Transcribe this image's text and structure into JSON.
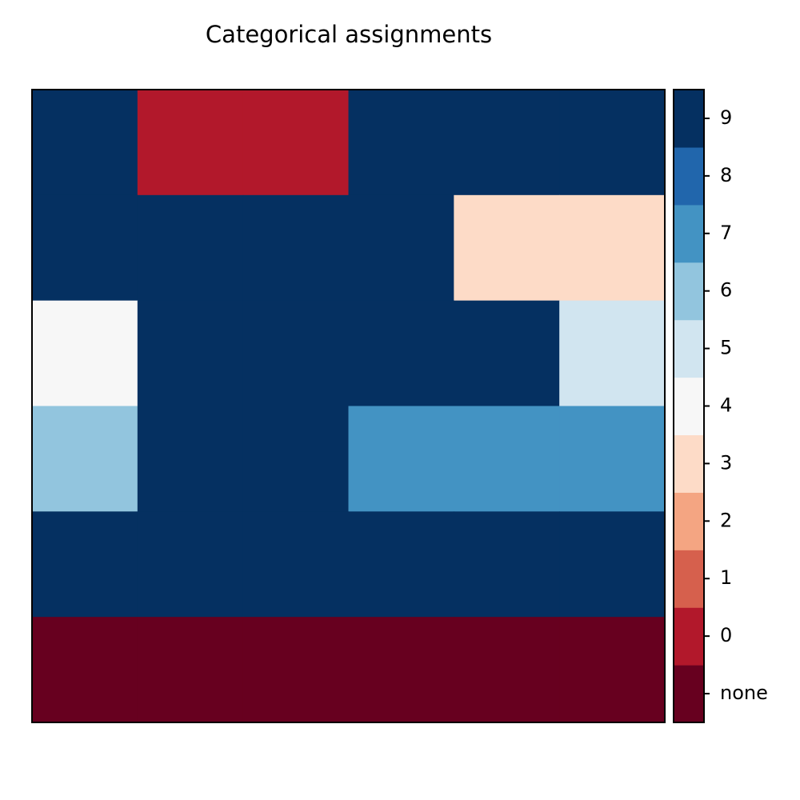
{
  "chart_data": {
    "type": "heatmap",
    "title": "Categorical assignments",
    "xlabel": "",
    "ylabel": "",
    "n_rows": 6,
    "n_cols": 6,
    "grid": [
      [
        9,
        0,
        0,
        9,
        9,
        9
      ],
      [
        9,
        9,
        9,
        9,
        3,
        3
      ],
      [
        4,
        9,
        9,
        9,
        9,
        5
      ],
      [
        6,
        9,
        9,
        7,
        7,
        7
      ],
      [
        9,
        9,
        9,
        9,
        9,
        9
      ],
      [
        -1,
        -1,
        -1,
        -1,
        -1,
        -1
      ]
    ],
    "colorbar": {
      "categories": [
        {
          "value": -1,
          "label": "none",
          "color": "#67001f"
        },
        {
          "value": 0,
          "label": "0",
          "color": "#b2182b"
        },
        {
          "value": 1,
          "label": "1",
          "color": "#d6604d"
        },
        {
          "value": 2,
          "label": "2",
          "color": "#f4a582"
        },
        {
          "value": 3,
          "label": "3",
          "color": "#fddbc7"
        },
        {
          "value": 4,
          "label": "4",
          "color": "#f7f7f7"
        },
        {
          "value": 5,
          "label": "5",
          "color": "#d1e5f0"
        },
        {
          "value": 6,
          "label": "6",
          "color": "#92c5de"
        },
        {
          "value": 7,
          "label": "7",
          "color": "#4393c3"
        },
        {
          "value": 8,
          "label": "8",
          "color": "#2166ac"
        },
        {
          "value": 9,
          "label": "9",
          "color": "#053061"
        }
      ]
    }
  }
}
